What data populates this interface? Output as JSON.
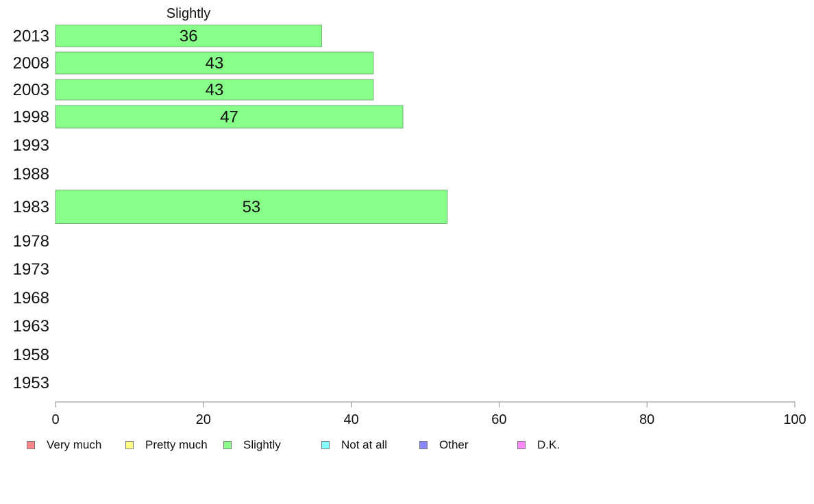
{
  "chart_data": {
    "type": "bar",
    "orientation": "horizontal",
    "title": "Slightly",
    "categories": [
      "2013",
      "2008",
      "2003",
      "1998",
      "1993",
      "1988",
      "1983",
      "1978",
      "1973",
      "1968",
      "1963",
      "1958",
      "1953"
    ],
    "series": [
      {
        "name": "Slightly",
        "color": "#88ff88",
        "values": [
          36,
          43,
          43,
          47,
          null,
          null,
          53,
          null,
          null,
          null,
          null,
          null,
          null
        ]
      }
    ],
    "value_labels": [
      "36",
      "43",
      "43",
      "47",
      "",
      "",
      "53",
      "",
      "",
      "",
      "",
      "",
      ""
    ],
    "xlim": [
      0,
      100
    ],
    "xticks": [
      0,
      20,
      40,
      60,
      80,
      100
    ],
    "xlabel": "",
    "ylabel": "",
    "grid": false,
    "legend_position": "bottom",
    "legend": [
      {
        "label": "Very much",
        "color": "#ff8888"
      },
      {
        "label": "Pretty much",
        "color": "#ffff88"
      },
      {
        "label": "Slightly",
        "color": "#88ff88"
      },
      {
        "label": "Not at all",
        "color": "#88ffff"
      },
      {
        "label": "Other",
        "color": "#8888ff"
      },
      {
        "label": "D.K.",
        "color": "#ff88ff"
      }
    ]
  }
}
